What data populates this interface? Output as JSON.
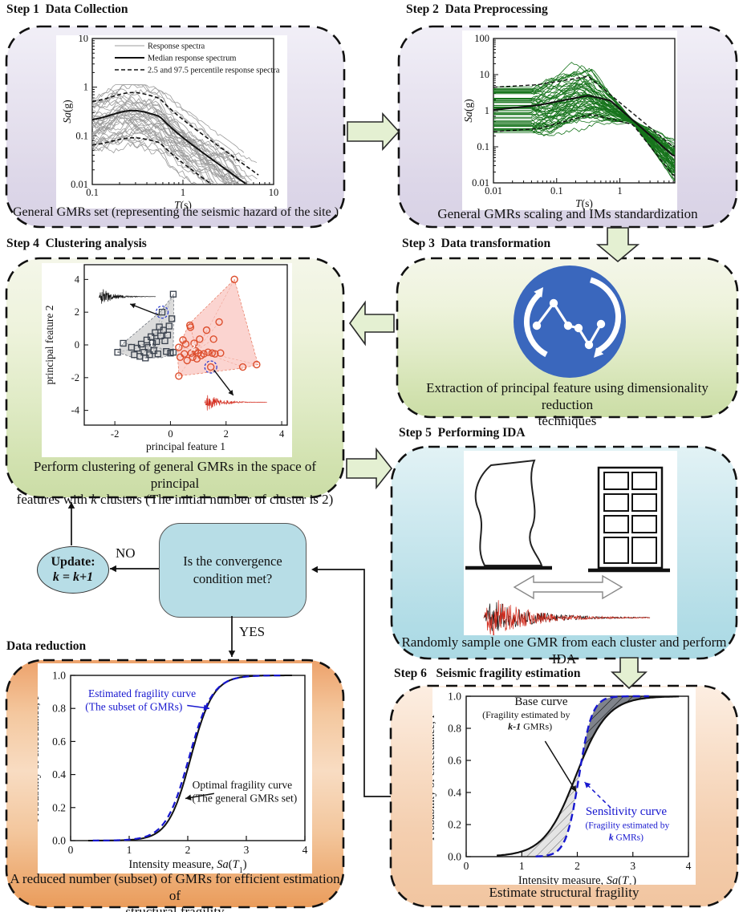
{
  "panels": {
    "step1": {
      "title": "Step 1  Data Collection",
      "caption": "General GMRs set (representing the seismic hazard of the site )"
    },
    "step2": {
      "title": "Step 2  Data Preprocessing",
      "caption": "General GMRs scaling and IMs standardization"
    },
    "step3": {
      "title": "Step 3  Data transformation",
      "caption_line1": "Extraction of principal feature  using dimensionality reduction",
      "caption_line2": "techniques"
    },
    "step4": {
      "title": "Step 4  Clustering analysis",
      "caption_line1": "Perform clustering of general GMRs  in the space of principal",
      "caption_line2_pre": "features with ",
      "caption_line2_k": "k",
      "caption_line2_post": " clusters (The initial number of cluster is 2)"
    },
    "step5": {
      "title": "Step 5  Performing IDA",
      "caption": "Randomly sample one GMR from each cluster and perform IDA"
    },
    "step6": {
      "title": "Step 6   Seismic fragility estimation",
      "caption": "Estimate structural fragility"
    },
    "data_reduction": {
      "title": "Data reduction",
      "caption_line1": "A reduced number (subset) of GMRs for efficient estimation of",
      "caption_line2": "structural fragility"
    }
  },
  "flow": {
    "decision_line1": "Is the convergence",
    "decision_line2": "condition met?",
    "update_label": "Update:",
    "update_formula": "k = k+1",
    "no_label": "NO",
    "yes_label": "YES"
  },
  "icons": {
    "step3_icon": "data-transformation-cycle-icon",
    "icon_color": "#3a67bd"
  },
  "colors": {
    "block_arrow_fill": "#e4f0d2",
    "panel_border": "#111111",
    "decision_fill": "#b7dde6",
    "blue_curve": "#1717cf",
    "green_spectra": "#17741c",
    "gray_spectra": "#9c9c9c",
    "cluster1": "#39414d",
    "cluster2": "#dd4f2e"
  },
  "chart_data": [
    {
      "id": "response_spectra",
      "type": "line",
      "title": "",
      "xlabel_parts": [
        {
          "t": "T",
          "i": 1
        },
        {
          "t": "(s)"
        }
      ],
      "ylabel_parts": [
        {
          "t": "Sa",
          "i": 1
        },
        {
          "t": "(g)"
        }
      ],
      "log_x": true,
      "log_y": true,
      "x_ticks": [
        0.1,
        1,
        10
      ],
      "y_ticks": [
        10,
        1,
        0.1,
        0.01
      ],
      "x_range": [
        0.1,
        10
      ],
      "y_range": [
        0.01,
        10
      ],
      "legend": [
        {
          "label": "Response spectra",
          "color": "#9c9c9c",
          "dash": null,
          "width": 1
        },
        {
          "label": "Median response spectrum",
          "color": "#111111",
          "dash": null,
          "width": 2
        },
        {
          "label": "2.5 and 97.5 percentile response spectra",
          "color": "#111111",
          "dash": "5,3",
          "width": 1.6
        }
      ],
      "ensemble": {
        "count": 38,
        "seed": 11,
        "flat_log_min": -1.25,
        "flat_log_span": 0.95,
        "corner_T": 0.55,
        "rolloff_slope": -1.35,
        "hump": 0.2
      },
      "median_flat_log": -0.7,
      "upper_flat_log": -0.33,
      "lower_flat_log": -1.22
    },
    {
      "id": "scaled_spectra",
      "type": "line",
      "title": "",
      "xlabel_parts": [
        {
          "t": "T",
          "i": 1
        },
        {
          "t": "(s)"
        }
      ],
      "ylabel_parts": [
        {
          "t": "Sa",
          "i": 1
        },
        {
          "t": "(g)"
        }
      ],
      "log_x": true,
      "log_y": true,
      "x_ticks": [
        0.01,
        0.1,
        1
      ],
      "y_ticks": [
        100,
        10,
        1,
        0.1,
        0.01
      ],
      "x_range": [
        0.01,
        7.4
      ],
      "y_range": [
        0.01,
        100
      ],
      "ensemble": {
        "count": 62,
        "seed": 23,
        "cross_T": 1.6,
        "cross_Sa": 0.5
      },
      "median_controls": [
        [
          -2,
          0.02
        ],
        [
          -1.3,
          0.15
        ],
        [
          -0.5,
          0.42
        ],
        [
          -0.15,
          0.28
        ],
        [
          0.204,
          -0.26
        ],
        [
          0.845,
          -1.25
        ]
      ],
      "upper_controls": [
        [
          -2,
          0.65
        ],
        [
          -1.3,
          0.72
        ],
        [
          -0.5,
          0.95
        ],
        [
          0.204,
          -0.07
        ],
        [
          0.845,
          -1.0
        ]
      ],
      "lower_controls": [
        [
          -2,
          -0.58
        ],
        [
          -1.3,
          -0.5
        ],
        [
          -0.45,
          -0.1
        ],
        [
          0.204,
          -0.38
        ],
        [
          0.845,
          -1.8
        ]
      ]
    },
    {
      "id": "pca_scatter",
      "type": "scatter",
      "xlabel": "principal feature 1",
      "ylabel": "principal feature 2",
      "x_ticks": [
        -2,
        0,
        2,
        4
      ],
      "y_ticks": [
        -4,
        -2,
        0,
        2,
        4
      ],
      "x_range": [
        -3.1,
        4.2
      ],
      "y_range": [
        -4.9,
        4.9
      ],
      "clusters": [
        {
          "name": "cluster-1",
          "marker": "square",
          "color": "#39414d",
          "fill": "rgba(150,150,150,0.38)",
          "label": "1",
          "label_pos": [
            -0.68,
            -0.1
          ],
          "centroid": [
            -0.66,
            -0.02
          ],
          "highlight": [
            -0.3,
            2.0
          ],
          "hull": [
            [
              -1.9,
              -0.45
            ],
            [
              -1.3,
              -0.8
            ],
            [
              -0.3,
              -0.78
            ],
            [
              0.1,
              -0.5
            ],
            [
              0.12,
              3.1
            ],
            [
              -0.33,
              2.08
            ],
            [
              -1.7,
              0.1
            ]
          ],
          "points": [
            [
              -1.9,
              -0.45
            ],
            [
              -1.7,
              0.1
            ],
            [
              -1.4,
              -0.15
            ],
            [
              -1.3,
              -0.6
            ],
            [
              -1.2,
              -0.2
            ],
            [
              -1.1,
              -0.7
            ],
            [
              -1.05,
              0.05
            ],
            [
              -0.95,
              -0.45
            ],
            [
              -0.9,
              -0.8
            ],
            [
              -0.85,
              0.3
            ],
            [
              -0.8,
              -0.15
            ],
            [
              -0.75,
              -0.6
            ],
            [
              -0.7,
              0.5
            ],
            [
              -0.65,
              0.1
            ],
            [
              -0.6,
              -0.35
            ],
            [
              -0.55,
              0.75
            ],
            [
              -0.5,
              0.2
            ],
            [
              -0.45,
              -0.55
            ],
            [
              -0.4,
              1.1
            ],
            [
              -0.35,
              0.55
            ],
            [
              -0.3,
              2.0
            ],
            [
              -0.25,
              0.9
            ],
            [
              -0.2,
              0.25
            ],
            [
              -0.15,
              -0.4
            ],
            [
              -0.1,
              0.6
            ],
            [
              -0.05,
              1.15
            ],
            [
              0.0,
              -0.5
            ],
            [
              0.05,
              1.6
            ],
            [
              0.1,
              3.1
            ],
            [
              0.1,
              -0.45
            ]
          ]
        },
        {
          "name": "cluster-2",
          "marker": "circle",
          "color": "#dd4f2e",
          "fill": "rgba(246,150,140,0.45)",
          "label": "2",
          "label_pos": [
            0.82,
            -0.35
          ],
          "centroid": [
            0.95,
            -0.32
          ],
          "highlight": [
            1.45,
            -1.35
          ],
          "hull": [
            [
              0.25,
              -0.35
            ],
            [
              0.66,
              1.26
            ],
            [
              2.3,
              4.0
            ],
            [
              3.15,
              -1.2
            ],
            [
              2.6,
              -1.42
            ],
            [
              0.3,
              -1.9
            ]
          ],
          "points": [
            [
              0.3,
              -1.9
            ],
            [
              0.3,
              -0.15
            ],
            [
              0.35,
              -0.75
            ],
            [
              0.45,
              0.3
            ],
            [
              0.5,
              -0.55
            ],
            [
              0.55,
              0.05
            ],
            [
              0.6,
              -0.95
            ],
            [
              0.7,
              1.2
            ],
            [
              0.72,
              1.08
            ],
            [
              0.75,
              -0.5
            ],
            [
              0.8,
              -0.75
            ],
            [
              0.85,
              0.1
            ],
            [
              0.9,
              -0.35
            ],
            [
              0.95,
              -0.85
            ],
            [
              1.0,
              -0.5
            ],
            [
              1.05,
              0.35
            ],
            [
              1.1,
              -0.65
            ],
            [
              1.2,
              -0.55
            ],
            [
              1.3,
              0.9
            ],
            [
              1.35,
              -0.45
            ],
            [
              1.45,
              -1.35
            ],
            [
              1.5,
              -0.5
            ],
            [
              1.55,
              0.35
            ],
            [
              1.6,
              -0.55
            ],
            [
              1.75,
              1.4
            ],
            [
              1.8,
              -0.5
            ],
            [
              2.3,
              4.0
            ],
            [
              2.6,
              -1.35
            ],
            [
              3.1,
              -1.2
            ]
          ]
        }
      ],
      "waveforms": [
        {
          "color": "#111111",
          "center": [
            -1.55,
            2.95
          ],
          "halfwidth": 1.02,
          "amp": 0.55,
          "seed": 5,
          "arrow_from": [
            -0.42,
            1.82
          ],
          "arrow_to": [
            -1.45,
            2.5
          ]
        },
        {
          "color": "#d42c1e",
          "center": [
            2.35,
            -3.5
          ],
          "halfwidth": 1.12,
          "amp": 0.6,
          "seed": 9,
          "arrow_from": [
            1.56,
            -1.52
          ],
          "arrow_to": [
            2.26,
            -3.08
          ]
        }
      ]
    },
    {
      "id": "subset_fragility",
      "type": "line",
      "xlabel_parts": [
        {
          "t": "Intensity measure, "
        },
        {
          "t": "Sa",
          "i": 1
        },
        {
          "t": "("
        },
        {
          "t": "T",
          "i": 1
        },
        {
          "t": "1",
          "sub": 1
        },
        {
          "t": ")"
        }
      ],
      "ylabel": "Probability of exceedance, P",
      "x_ticks": [
        0,
        1,
        2,
        3,
        4
      ],
      "y_ticks": [
        0.0,
        0.2,
        0.4,
        0.6,
        0.8,
        1.0
      ],
      "x_range": [
        0,
        4
      ],
      "y_range": [
        0,
        1
      ],
      "curves": [
        {
          "name": "Optimal fragility curve (the general GMRs set)",
          "color": "#111111",
          "width": 2,
          "x50": 2.05,
          "slope": 5.2,
          "dash": null,
          "xmin": 0.3,
          "xmax": 3.8
        },
        {
          "name": "Estimated fragility curve (the subset of GMRs)",
          "color": "#1717cf",
          "width": 2.2,
          "x50": 2.02,
          "slope": 5.0,
          "dash": "8,5",
          "xmin": 0.38,
          "xmax": 3.62
        }
      ],
      "annotations": [
        {
          "color": "#1717cf",
          "size": 13.5,
          "lines": [
            {
              "text": "Estimated fragility curve",
              "x": 1.22,
              "y": 0.868
            },
            {
              "text": "(The subset of GMRs)",
              "x": 1.08,
              "y": 0.79
            }
          ],
          "arrow": {
            "from": [
              1.99,
              0.818
            ],
            "to": [
              2.37,
              0.8
            ],
            "dash": null
          }
        },
        {
          "color": "#111111",
          "size": 13.5,
          "lines": [
            {
              "text": "Optimal fragility curve",
              "x": 2.93,
              "y": 0.315
            },
            {
              "text": "(The general GMRs set)",
              "x": 2.97,
              "y": 0.235
            }
          ],
          "arrow": {
            "from": [
              2.45,
              0.285
            ],
            "to": [
              1.96,
              0.255
            ],
            "dash": null
          }
        }
      ]
    },
    {
      "id": "sensitivity_fragility",
      "type": "line",
      "xlabel_parts": [
        {
          "t": "Intensity measure, "
        },
        {
          "t": "Sa",
          "i": 1
        },
        {
          "t": "("
        },
        {
          "t": "T",
          "i": 1
        },
        {
          "t": "1",
          "sub": 1
        },
        {
          "t": ")"
        }
      ],
      "ylabel": "Probability of exceedance, P",
      "x_ticks": [
        0,
        1,
        2,
        3,
        4
      ],
      "y_ticks": [
        0.0,
        0.2,
        0.4,
        0.6,
        0.8,
        1.0
      ],
      "x_range": [
        0,
        4
      ],
      "y_range": [
        0,
        1
      ],
      "regions": true,
      "curves": [
        {
          "name": "Base curve (fragility estimated by k-1 GMRs)",
          "color": "#111111",
          "width": 2.2,
          "x50": 1.97,
          "slope": 3.5,
          "dash": null,
          "xmin": 0.55,
          "xmax": 3.85
        },
        {
          "name": "Sensitivity curve (fragility estimated by k GMRs)",
          "color": "#1717cf",
          "width": 2.4,
          "x50": 2.03,
          "slope": 8.5,
          "dash": "9,5",
          "xmin": 1.25,
          "xmax": 3.3
        }
      ],
      "annotations": [
        {
          "color": "#111111",
          "size": 15,
          "lines": [
            {
              "text": "Base curve",
              "x": 1.35,
              "y": 0.945,
              "size": 15
            },
            {
              "text": "(Fragility estimated by",
              "x": 1.08,
              "y": 0.865,
              "size": 12
            },
            {
              "parts": [
                {
                  "t": "k-1",
                  "i": 1,
                  "b": 1
                },
                {
                  "t": " GMRs)"
                }
              ],
              "x": 1.15,
              "y": 0.792,
              "size": 12
            }
          ],
          "arrow": {
            "from": [
              1.42,
              0.72
            ],
            "to": [
              1.98,
              0.405
            ],
            "dash": null
          }
        },
        {
          "color": "#1717cf",
          "size": 15,
          "lines": [
            {
              "text": "Sensitivity curve",
              "x": 2.88,
              "y": 0.26,
              "size": 15
            },
            {
              "text": "(Fragility estimated by",
              "x": 2.9,
              "y": 0.178,
              "size": 11.5
            },
            {
              "parts": [
                {
                  "t": "k",
                  "i": 1,
                  "b": 1
                },
                {
                  "t": " GMRs)"
                }
              ],
              "x": 2.88,
              "y": 0.103,
              "size": 11.5
            }
          ],
          "arrow": {
            "from": [
              2.6,
              0.305
            ],
            "to": [
              2.13,
              0.465
            ],
            "dash": "5,4"
          }
        }
      ]
    }
  ]
}
